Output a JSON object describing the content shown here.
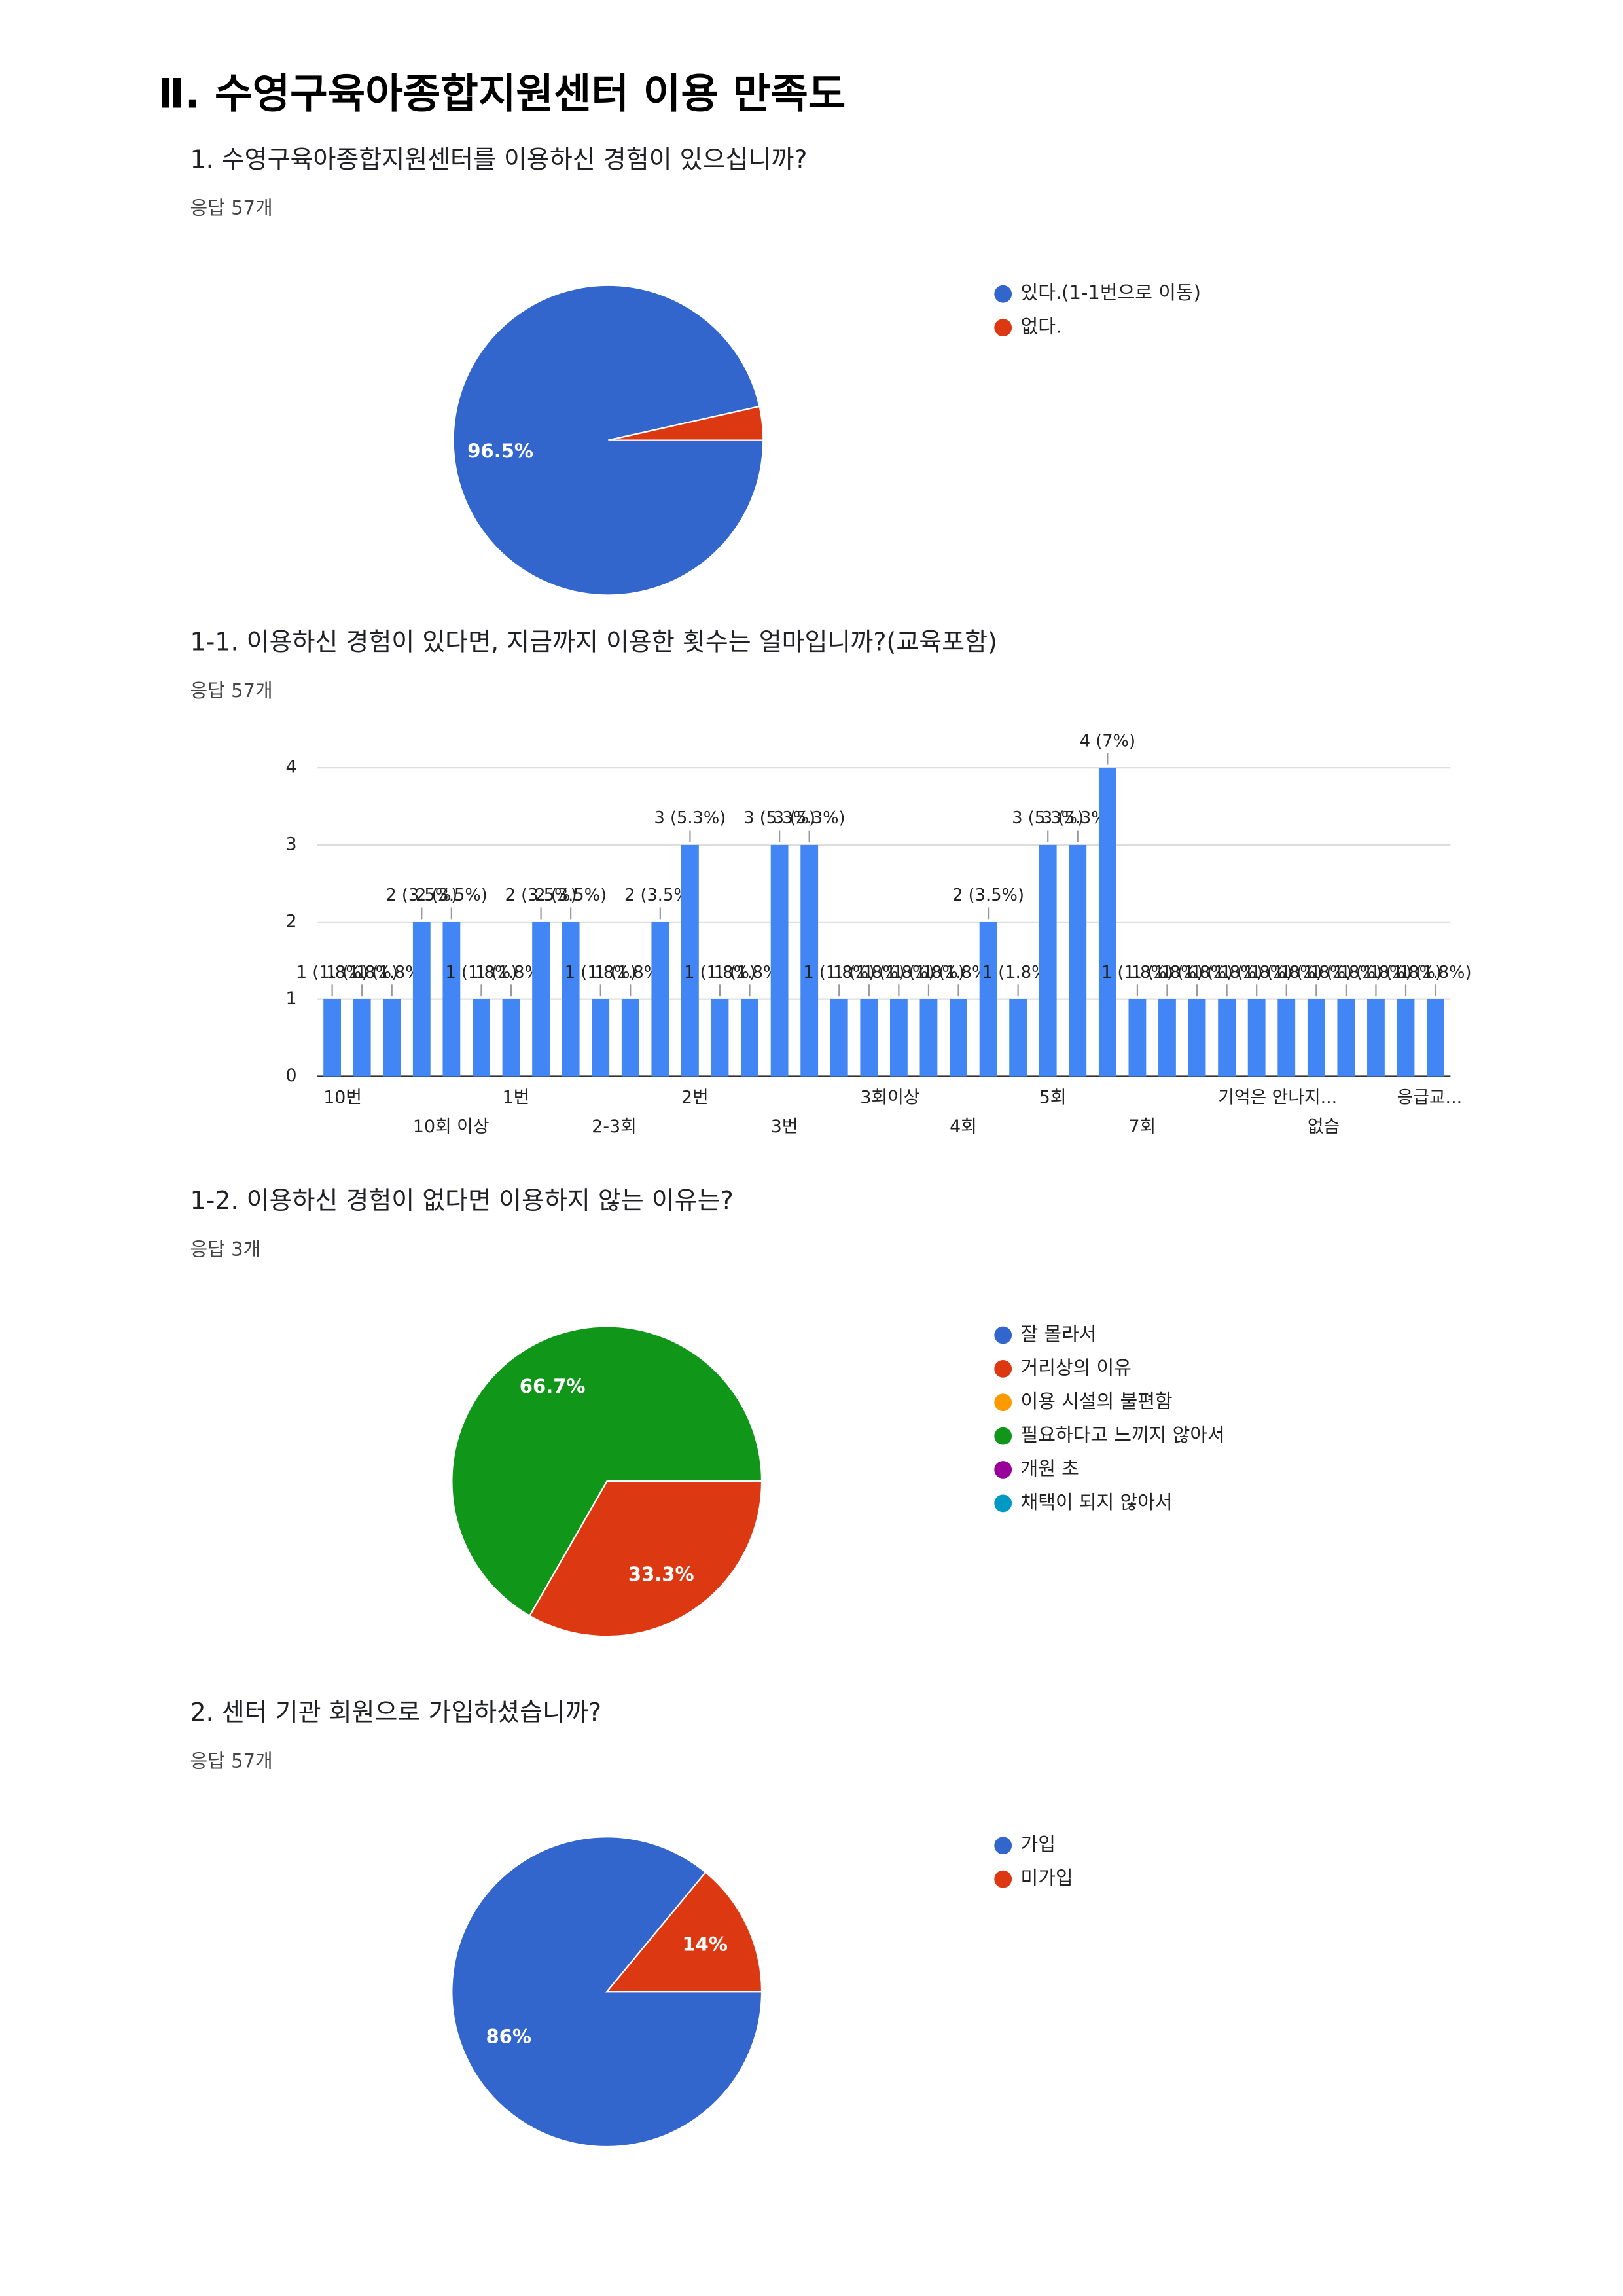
{
  "header": {
    "title": "Ⅱ. 수영구육아종합지원센터 이용 만족도"
  },
  "chart_data": [
    {
      "type": "pie",
      "title": "1. 수영구육아종합지원센터를 이용하신 경험이 있으십니까?",
      "subtitle": "응답 57개",
      "categories": [
        "있다.(1-1번으로 이동)",
        "없다."
      ],
      "values": [
        96.5,
        3.5
      ],
      "value_labels": [
        "96.5%",
        null
      ],
      "colors": [
        "#3366cc",
        "#dc3912"
      ]
    },
    {
      "type": "bar",
      "title": "1-1. 이용하신 경험이 있다면, 지금까지 이용한 횟수는 얼마입니까?(교육포함)",
      "subtitle": "응답 57개",
      "categories": [
        "10번",
        null,
        null,
        "10회 이상",
        null,
        null,
        "1번",
        null,
        null,
        "2-3회",
        null,
        null,
        "2번",
        null,
        null,
        "3번",
        null,
        null,
        "3회이상",
        null,
        null,
        "4회",
        null,
        null,
        "5회",
        null,
        null,
        "7회",
        null,
        null,
        "기억은 안나지...",
        null,
        null,
        "없슴",
        null,
        null,
        "응급교...",
        null
      ],
      "values": [
        1,
        1,
        1,
        2,
        2,
        1,
        1,
        2,
        2,
        1,
        1,
        2,
        3,
        1,
        1,
        3,
        3,
        1,
        1,
        1,
        1,
        1,
        2,
        1,
        3,
        3,
        4,
        1,
        1,
        1,
        1,
        1,
        1,
        1,
        1,
        1,
        1,
        1
      ],
      "value_labels": [
        "1 (1.8%)",
        "1 (1.8%)",
        "1 (1.8%)",
        "2 (3.5%)",
        "2 (3.5%)",
        "1 (1.8%)",
        "1 (1.8%)",
        "2 (3.5%)",
        "2 (3.5%)",
        "1 (1.8%)",
        "1 (1.8%)",
        "2 (3.5%)",
        "3 (5.3%)",
        "1 (1.8%)",
        "1 (1.8%)",
        "3 (5.3%)",
        "3 (5.3%)",
        "1 (1.8%)",
        "1 (1.8%)",
        "1 (1.8%)",
        "1 (1.8%)",
        "1 (1.8%)",
        "2 (3.5%)",
        "1 (1.8%)",
        "3 (5.3%)",
        "3 (5.3%)",
        "4 (7%)",
        "1 (1.8%)",
        "1 (1.8%)",
        "1 (1.8%)",
        "1 (1.8%)",
        "1 (1.8%)",
        "1 (1.8%)",
        "1 (1.8%)",
        "1 (1.8%)",
        "1 (1.8%)",
        "1 (1.8%)",
        "1 (1.8%)"
      ],
      "color": "#4285f4",
      "ylim": [
        0,
        4
      ],
      "yticks": [
        0,
        1,
        2,
        3,
        4
      ],
      "grid": true
    },
    {
      "type": "pie",
      "title": "1-2. 이용하신 경험이 없다면 이용하지 않는 이유는?",
      "subtitle": "응답 3개",
      "categories": [
        "잘 몰라서",
        "거리상의 이유",
        "이용 시설의 불편함",
        "필요하다고 느끼지 않아서",
        "개원 초",
        "채택이 되지 않아서"
      ],
      "values": [
        0,
        33.3,
        0,
        66.7,
        0,
        0
      ],
      "value_labels": [
        null,
        "33.3%",
        null,
        "66.7%",
        null,
        null
      ],
      "colors": [
        "#3366cc",
        "#dc3912",
        "#ff9900",
        "#109618",
        "#990099",
        "#0099c6"
      ]
    },
    {
      "type": "pie",
      "title": "2. 센터 기관 회원으로 가입하셨습니까?",
      "subtitle": "응답 57개",
      "categories": [
        "가입",
        "미가입"
      ],
      "values": [
        86,
        14
      ],
      "value_labels": [
        "86%",
        "14%"
      ],
      "colors": [
        "#3366cc",
        "#dc3912"
      ]
    }
  ]
}
